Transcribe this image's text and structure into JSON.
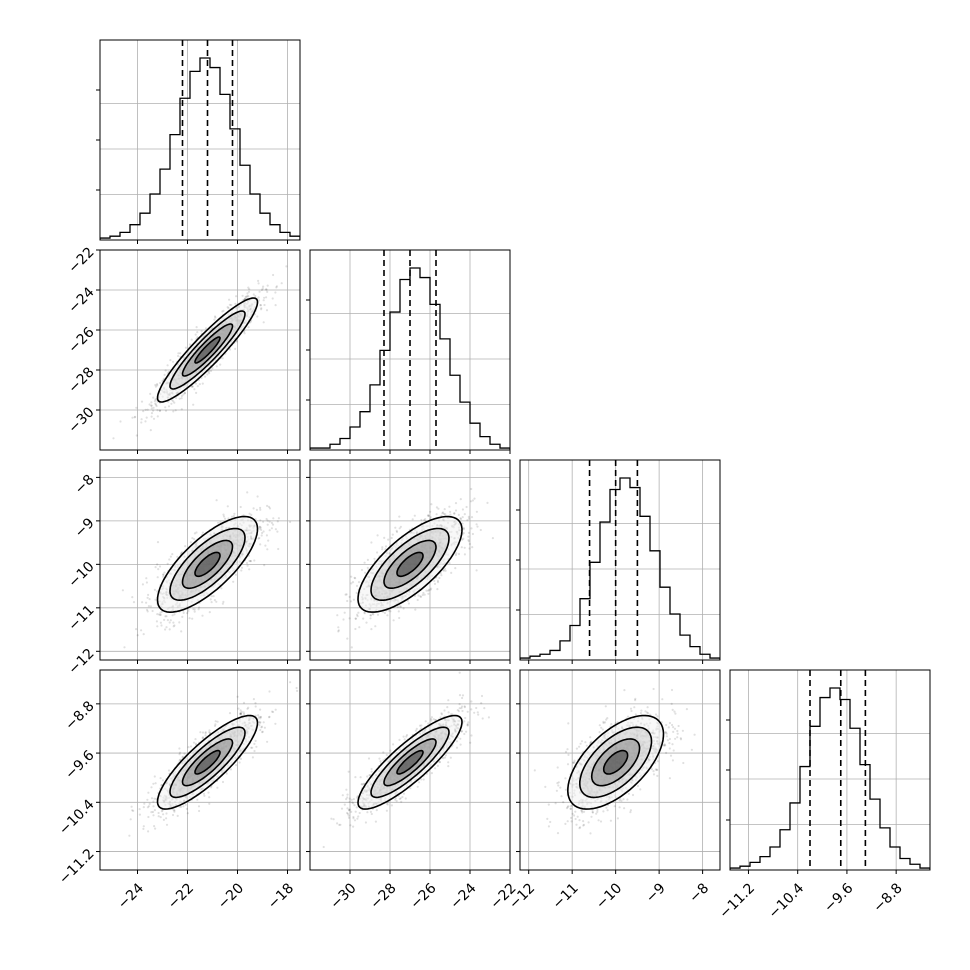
{
  "chart_data": {
    "type": "corner",
    "grid": true,
    "parameters": [
      {
        "mean": -21.2,
        "sd": 1.0,
        "range": [
          -25.5,
          -17.5
        ],
        "quantiles": [
          -22.2,
          -21.2,
          -20.2
        ],
        "ticks": [
          -24,
          -22,
          -20,
          -18
        ],
        "tick_labels": [
          "−24",
          "−22",
          "−20",
          "−18"
        ]
      },
      {
        "mean": -27.0,
        "sd": 1.3,
        "range": [
          -32.0,
          -22.0
        ],
        "quantiles": [
          -28.3,
          -27.0,
          -25.7
        ],
        "ticks": [
          -30,
          -28,
          -26,
          -24,
          -22
        ],
        "tick_labels": [
          "−30",
          "−28",
          "−26",
          "−24",
          "−22"
        ]
      },
      {
        "mean": -10.0,
        "sd": 0.55,
        "range": [
          -12.2,
          -7.6
        ],
        "quantiles": [
          -10.6,
          -10.0,
          -9.5
        ],
        "ticks": [
          -12,
          -11,
          -10,
          -9,
          -8
        ],
        "tick_labels": [
          "−12",
          "−11",
          "−10",
          "−9",
          "−8"
        ]
      },
      {
        "mean": -9.75,
        "sd": 0.38,
        "range": [
          -11.5,
          -8.25
        ],
        "quantiles": [
          -10.2,
          -9.7,
          -9.3
        ],
        "ticks": [
          -11.2,
          -10.4,
          -9.6,
          -8.8
        ],
        "tick_labels": [
          "−11.2",
          "−10.4",
          "−9.6",
          "−8.8"
        ]
      }
    ],
    "correlations": [
      [
        1.0,
        0.92,
        0.74,
        0.84
      ],
      [
        0.92,
        1.0,
        0.72,
        0.86
      ],
      [
        0.74,
        0.72,
        1.0,
        0.6
      ],
      [
        0.84,
        0.86,
        0.6,
        1.0
      ]
    ],
    "histograms": [
      [
        1,
        2,
        4,
        8,
        14,
        24,
        37,
        55,
        74,
        88,
        95,
        90,
        76,
        58,
        39,
        24,
        14,
        8,
        4,
        2
      ],
      [
        1,
        1,
        3,
        6,
        12,
        20,
        34,
        52,
        72,
        89,
        95,
        90,
        76,
        58,
        39,
        25,
        14,
        7,
        3,
        1
      ],
      [
        1,
        2,
        3,
        5,
        10,
        18,
        32,
        51,
        72,
        89,
        95,
        90,
        75,
        57,
        38,
        24,
        13,
        7,
        3,
        1
      ],
      [
        1,
        2,
        4,
        7,
        12,
        21,
        35,
        54,
        75,
        90,
        95,
        89,
        74,
        55,
        37,
        22,
        12,
        6,
        3,
        1
      ]
    ],
    "contour_levels_sigma": [
      0.5,
      1.0,
      1.5,
      2.0
    ]
  }
}
